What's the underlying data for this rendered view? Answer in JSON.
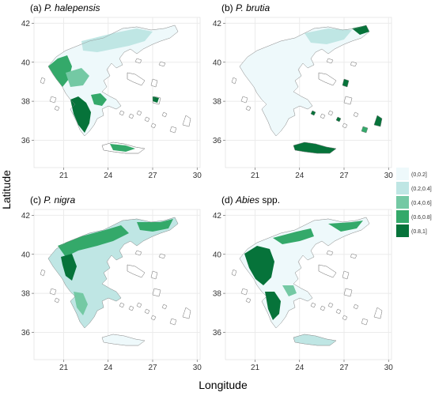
{
  "figure": {
    "xlabel": "Longitude",
    "ylabel": "Latitude"
  },
  "panels": [
    {
      "id": "a",
      "prefix": "(a) ",
      "species": "P. halepensis",
      "suffix": ""
    },
    {
      "id": "b",
      "prefix": "(b) ",
      "species": "P. brutia",
      "suffix": ""
    },
    {
      "id": "c",
      "prefix": "(c) ",
      "species": "P. nigra",
      "suffix": ""
    },
    {
      "id": "d",
      "prefix": "(d) ",
      "species": "Abies",
      "suffix": " spp."
    }
  ],
  "axes": {
    "x_ticks": [
      "21",
      "24",
      "27",
      "30"
    ],
    "y_ticks": [
      "42",
      "40",
      "38",
      "36"
    ],
    "xlim": [
      19,
      30.2
    ],
    "ylim": [
      34.6,
      42.3
    ]
  },
  "legend": {
    "position": "right",
    "bins": [
      {
        "label": "(0,0.2]",
        "color": "#eef9fb"
      },
      {
        "label": "(0.2,0.4]",
        "color": "#bfe6e4"
      },
      {
        "label": "(0.4,0.6]",
        "color": "#74c9a4"
      },
      {
        "label": "(0.6,0.8]",
        "color": "#34a96a"
      },
      {
        "label": "(0.8,1]",
        "color": "#06733a"
      }
    ]
  },
  "colors": {
    "panel_background": "#ffffff",
    "gridline": "#ebebeb",
    "land_outline": "#888888"
  }
}
